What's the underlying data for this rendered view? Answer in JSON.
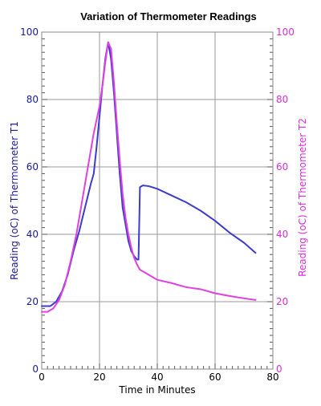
{
  "chart_data": {
    "type": "line",
    "title": "Variation of Thermometer Readings",
    "xlabel": "Time in Minutes",
    "ylabel_left": "Reading (oC) of Thermometer T1",
    "ylabel_right": "Reading (oC) of Thermometer T2",
    "xlim": [
      0,
      80
    ],
    "ylim_left": [
      0,
      100
    ],
    "ylim_right": [
      0,
      100
    ],
    "x_ticks": [
      "0",
      "20",
      "40",
      "60",
      "80"
    ],
    "y_ticks_left": [
      "0",
      "20",
      "40",
      "60",
      "80",
      "100"
    ],
    "y_ticks_right": [
      "0",
      "20",
      "40",
      "60",
      "80",
      "100"
    ],
    "grid": true,
    "colors": {
      "t1": "#3b3bcc",
      "t2": "#e040e0",
      "left_axis_text": "#1a1a9c",
      "right_axis_text": "#d630d6",
      "grid": "#999999",
      "frame": "#888888"
    },
    "series": [
      {
        "axis": "left",
        "color": "#3b3bcc",
        "x": [
          0,
          3,
          5,
          7,
          9,
          11,
          13,
          15,
          17,
          18,
          19,
          20,
          21,
          22,
          23,
          24,
          25,
          26,
          27,
          28,
          29,
          30,
          31,
          32,
          33,
          33.5,
          34,
          35,
          37,
          40,
          45,
          50,
          55,
          60,
          65,
          70,
          74
        ],
        "y": [
          18.7,
          18.7,
          20,
          23,
          28,
          35,
          41,
          48,
          55,
          58,
          66,
          75,
          84,
          92,
          97,
          92,
          82,
          70,
          58,
          48,
          43,
          38,
          35,
          33.5,
          32.5,
          32.5,
          54,
          54.5,
          54.3,
          53.5,
          51.5,
          49.5,
          47,
          44,
          40.5,
          37.5,
          34.5
        ]
      },
      {
        "axis": "right",
        "color": "#e040e0",
        "x": [
          0,
          2,
          4,
          6,
          8,
          10,
          12,
          14,
          16,
          18,
          20,
          21,
          22,
          23,
          24,
          25,
          26,
          27,
          28,
          29,
          30,
          31,
          32,
          33,
          34,
          36,
          40,
          45,
          50,
          55,
          60,
          65,
          70,
          74
        ],
        "y": [
          17,
          17,
          18,
          20.5,
          25,
          32,
          40,
          50,
          60,
          70,
          78,
          84,
          91,
          97,
          95,
          85,
          73,
          62,
          52,
          45,
          40,
          36,
          33,
          31,
          29.5,
          28.5,
          26.5,
          25.5,
          24.3,
          23.7,
          22.5,
          21.7,
          21,
          20.5
        ]
      }
    ]
  }
}
